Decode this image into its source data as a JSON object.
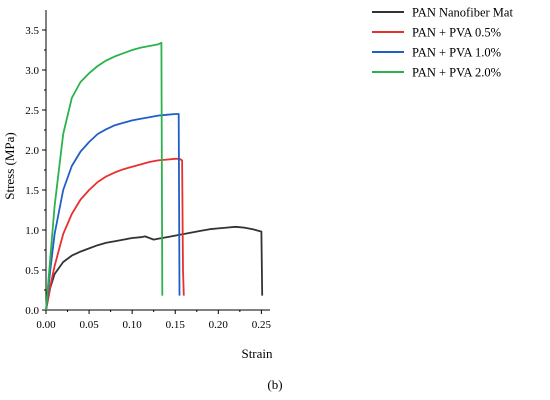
{
  "chart_data": {
    "type": "line",
    "title": "",
    "xlabel": "Strain",
    "ylabel": "Stress (MPa)",
    "panel_label": "(b)",
    "xlim": [
      0,
      0.26
    ],
    "ylim": [
      0,
      3.75
    ],
    "xticks": [
      "0.00",
      "0.05",
      "0.10",
      "0.15",
      "0.20",
      "0.25"
    ],
    "yticks": [
      "0.0",
      "0.5",
      "1.0",
      "1.5",
      "2.0",
      "2.5",
      "3.0",
      "3.5"
    ],
    "grid": false,
    "legend_position": "top-right, outside plot",
    "series": [
      {
        "name": "PAN Nanofiber Mat",
        "color": "#333333",
        "points": [
          [
            0,
            0
          ],
          [
            0.005,
            0.28
          ],
          [
            0.01,
            0.45
          ],
          [
            0.02,
            0.6
          ],
          [
            0.03,
            0.68
          ],
          [
            0.04,
            0.73
          ],
          [
            0.05,
            0.77
          ],
          [
            0.06,
            0.81
          ],
          [
            0.07,
            0.84
          ],
          [
            0.08,
            0.86
          ],
          [
            0.09,
            0.88
          ],
          [
            0.1,
            0.9
          ],
          [
            0.11,
            0.91
          ],
          [
            0.115,
            0.92
          ],
          [
            0.12,
            0.9
          ],
          [
            0.125,
            0.88
          ],
          [
            0.13,
            0.89
          ],
          [
            0.14,
            0.91
          ],
          [
            0.15,
            0.93
          ],
          [
            0.16,
            0.95
          ],
          [
            0.17,
            0.97
          ],
          [
            0.18,
            0.99
          ],
          [
            0.19,
            1.01
          ],
          [
            0.2,
            1.02
          ],
          [
            0.21,
            1.03
          ],
          [
            0.22,
            1.04
          ],
          [
            0.23,
            1.03
          ],
          [
            0.24,
            1.01
          ],
          [
            0.25,
            0.98
          ],
          [
            0.251,
            0.18
          ]
        ]
      },
      {
        "name": "PAN + PVA 0.5%",
        "color": "#e8302e",
        "points": [
          [
            0,
            0
          ],
          [
            0.005,
            0.3
          ],
          [
            0.01,
            0.55
          ],
          [
            0.02,
            0.95
          ],
          [
            0.03,
            1.2
          ],
          [
            0.04,
            1.38
          ],
          [
            0.05,
            1.5
          ],
          [
            0.06,
            1.6
          ],
          [
            0.07,
            1.67
          ],
          [
            0.08,
            1.72
          ],
          [
            0.09,
            1.76
          ],
          [
            0.1,
            1.79
          ],
          [
            0.11,
            1.82
          ],
          [
            0.12,
            1.85
          ],
          [
            0.13,
            1.87
          ],
          [
            0.14,
            1.88
          ],
          [
            0.15,
            1.89
          ],
          [
            0.155,
            1.89
          ],
          [
            0.158,
            1.87
          ],
          [
            0.159,
            0.5
          ],
          [
            0.16,
            0.18
          ]
        ]
      },
      {
        "name": "PAN + PVA 1.0%",
        "color": "#1f5fc6",
        "points": [
          [
            0,
            0
          ],
          [
            0.005,
            0.5
          ],
          [
            0.01,
            0.95
          ],
          [
            0.02,
            1.5
          ],
          [
            0.03,
            1.8
          ],
          [
            0.04,
            1.98
          ],
          [
            0.05,
            2.1
          ],
          [
            0.06,
            2.2
          ],
          [
            0.07,
            2.26
          ],
          [
            0.08,
            2.31
          ],
          [
            0.09,
            2.34
          ],
          [
            0.1,
            2.37
          ],
          [
            0.11,
            2.39
          ],
          [
            0.12,
            2.41
          ],
          [
            0.13,
            2.43
          ],
          [
            0.14,
            2.44
          ],
          [
            0.15,
            2.45
          ],
          [
            0.154,
            2.45
          ],
          [
            0.155,
            0.18
          ]
        ]
      },
      {
        "name": "PAN + PVA 2.0%",
        "color": "#2bb24c",
        "points": [
          [
            0,
            0
          ],
          [
            0.005,
            0.65
          ],
          [
            0.01,
            1.3
          ],
          [
            0.02,
            2.2
          ],
          [
            0.03,
            2.65
          ],
          [
            0.04,
            2.85
          ],
          [
            0.05,
            2.96
          ],
          [
            0.06,
            3.05
          ],
          [
            0.07,
            3.12
          ],
          [
            0.08,
            3.17
          ],
          [
            0.09,
            3.21
          ],
          [
            0.1,
            3.25
          ],
          [
            0.11,
            3.28
          ],
          [
            0.12,
            3.3
          ],
          [
            0.13,
            3.32
          ],
          [
            0.134,
            3.34
          ],
          [
            0.135,
            0.18
          ]
        ]
      }
    ]
  }
}
